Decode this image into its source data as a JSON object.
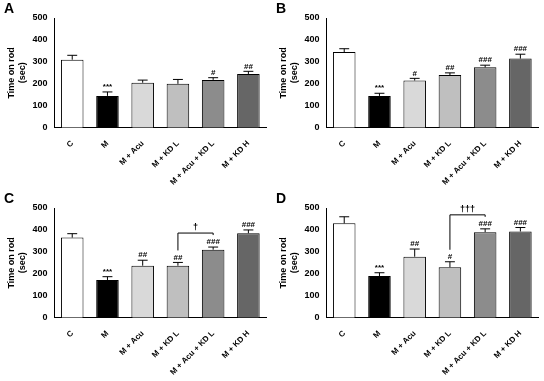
{
  "chart_data": [
    {
      "type": "bar",
      "title": "A",
      "categories": [
        "C",
        "M",
        "M + Acu",
        "M + KD L",
        "M + Acu + KD L",
        "M + KD H"
      ],
      "values": [
        310,
        145,
        205,
        200,
        218,
        245
      ],
      "errors": [
        20,
        18,
        12,
        20,
        10,
        12
      ],
      "annotations": [
        null,
        "***",
        null,
        null,
        "#",
        "##"
      ],
      "colors": [
        "#ffffff",
        "#000000",
        "#d9d9d9",
        "#bfbfbf",
        "#8c8c8c",
        "#666666"
      ],
      "y_label": [
        "Time on rod",
        "(sec)"
      ],
      "ylim": [
        0,
        500
      ],
      "yticks": [
        0,
        100,
        200,
        300,
        400,
        500
      ],
      "grid": false
    },
    {
      "type": "bar",
      "title": "B",
      "categories": [
        "C",
        "M",
        "M + Acu",
        "M + KD L",
        "M + Acu + KD L",
        "M + KD H"
      ],
      "values": [
        345,
        145,
        215,
        240,
        275,
        315
      ],
      "errors": [
        15,
        12,
        10,
        10,
        10,
        20
      ],
      "annotations": [
        null,
        "***",
        "#",
        "##",
        "###",
        "###"
      ],
      "colors": [
        "#ffffff",
        "#000000",
        "#d9d9d9",
        "#bfbfbf",
        "#8c8c8c",
        "#666666"
      ],
      "y_label": [
        "Time on rod",
        "(sec)"
      ],
      "ylim": [
        0,
        500
      ],
      "yticks": [
        0,
        100,
        200,
        300,
        400,
        500
      ],
      "grid": false
    },
    {
      "type": "bar",
      "title": "C",
      "categories": [
        "C",
        "M",
        "M + Acu",
        "M + KD L",
        "M + Acu + KD L",
        "M + KD H"
      ],
      "values": [
        365,
        172,
        237,
        237,
        310,
        385
      ],
      "errors": [
        18,
        15,
        25,
        15,
        12,
        15
      ],
      "annotations": [
        null,
        "***",
        "##",
        "##",
        "###",
        "###"
      ],
      "comparisons": [
        {
          "from": "M + KD L",
          "to": "M + Acu + KD L",
          "label": "†"
        }
      ],
      "colors": [
        "#ffffff",
        "#000000",
        "#d9d9d9",
        "#bfbfbf",
        "#8c8c8c",
        "#666666"
      ],
      "y_label": [
        "Time on rod",
        "(sec)"
      ],
      "ylim": [
        0,
        500
      ],
      "yticks": [
        0,
        100,
        200,
        300,
        400,
        500
      ],
      "grid": false
    },
    {
      "type": "bar",
      "title": "D",
      "categories": [
        "C",
        "M",
        "M + Acu",
        "M + KD L",
        "M + Acu + KD L",
        "M + KD H"
      ],
      "values": [
        430,
        190,
        278,
        230,
        390,
        393
      ],
      "errors": [
        30,
        15,
        35,
        25,
        15,
        18
      ],
      "annotations": [
        null,
        "***",
        "##",
        "#",
        "###",
        "###"
      ],
      "comparisons": [
        {
          "from": "M + KD L",
          "to": "M + Acu + KD L",
          "label": "†††"
        }
      ],
      "colors": [
        "#ffffff",
        "#000000",
        "#d9d9d9",
        "#bfbfbf",
        "#8c8c8c",
        "#666666"
      ],
      "y_label": [
        "Time on rod",
        "(sec)"
      ],
      "ylim": [
        0,
        500
      ],
      "yticks": [
        0,
        100,
        200,
        300,
        400,
        500
      ],
      "grid": false
    }
  ]
}
